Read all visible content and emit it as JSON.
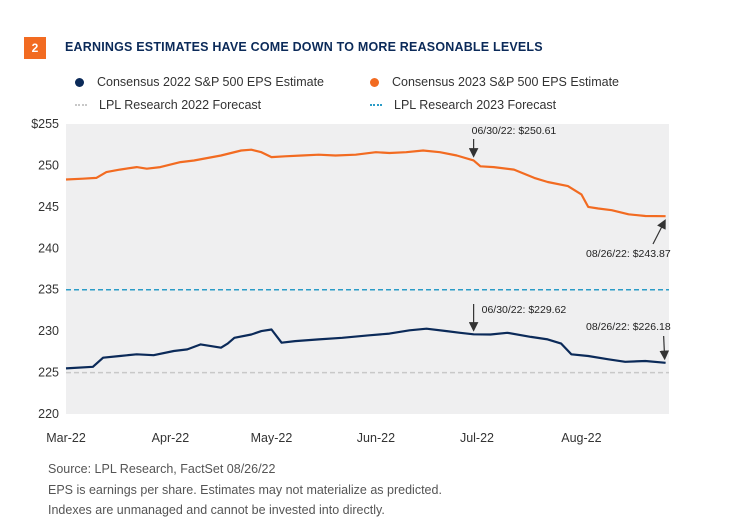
{
  "header": {
    "badge": "2",
    "title": "EARNINGS ESTIMATES HAVE COME DOWN TO MORE REASONABLE LEVELS"
  },
  "colors": {
    "navy": "#0b2a59",
    "orange": "#f26b21",
    "grey_dash": "#c8c8c8",
    "teal_dash": "#2b9cc7",
    "plot_bg": "#efeff0"
  },
  "chart_data": {
    "type": "line",
    "ylim": [
      220,
      255
    ],
    "y_ticks": [
      "$255",
      "250",
      "245",
      "240",
      "235",
      "230",
      "225",
      "220"
    ],
    "x_ticks": [
      "Mar-22",
      "Apr-22",
      "May-22",
      "Jun-22",
      "Jul-22",
      "Aug-22"
    ],
    "x_range": [
      "2022-03-01",
      "2022-08-27"
    ],
    "series": [
      {
        "name": "Consensus  2022 S&P 500 EPS Estimate",
        "style": "solid",
        "color": "#0b2a59",
        "x": [
          "2022-03-01",
          "2022-03-09",
          "2022-03-12",
          "2022-03-17",
          "2022-03-22",
          "2022-03-27",
          "2022-04-02",
          "2022-04-06",
          "2022-04-10",
          "2022-04-16",
          "2022-04-18",
          "2022-04-20",
          "2022-04-25",
          "2022-04-28",
          "2022-05-01",
          "2022-05-04",
          "2022-05-08",
          "2022-05-15",
          "2022-05-22",
          "2022-05-30",
          "2022-06-05",
          "2022-06-11",
          "2022-06-16",
          "2022-06-22",
          "2022-06-26",
          "2022-06-30",
          "2022-07-05",
          "2022-07-10",
          "2022-07-17",
          "2022-07-22",
          "2022-07-26",
          "2022-07-29",
          "2022-08-03",
          "2022-08-09",
          "2022-08-14",
          "2022-08-20",
          "2022-08-26"
        ],
        "values": [
          225.5,
          225.7,
          226.8,
          227.0,
          227.2,
          227.1,
          227.6,
          227.8,
          228.4,
          228.0,
          228.5,
          229.2,
          229.6,
          230.0,
          230.2,
          228.6,
          228.8,
          229.0,
          229.2,
          229.5,
          229.7,
          230.1,
          230.3,
          230.0,
          229.8,
          229.62,
          229.6,
          229.8,
          229.3,
          229.0,
          228.5,
          227.2,
          227.0,
          226.6,
          226.3,
          226.4,
          226.18
        ]
      },
      {
        "name": "Consensus  2023 S&P 500 EPS Estimate",
        "style": "solid",
        "color": "#f26b21",
        "x": [
          "2022-03-01",
          "2022-03-06",
          "2022-03-10",
          "2022-03-13",
          "2022-03-17",
          "2022-03-22",
          "2022-03-25",
          "2022-03-29",
          "2022-04-04",
          "2022-04-08",
          "2022-04-12",
          "2022-04-16",
          "2022-04-19",
          "2022-04-22",
          "2022-04-25",
          "2022-04-28",
          "2022-05-01",
          "2022-05-05",
          "2022-05-10",
          "2022-05-15",
          "2022-05-20",
          "2022-05-26",
          "2022-06-01",
          "2022-06-05",
          "2022-06-10",
          "2022-06-15",
          "2022-06-20",
          "2022-06-25",
          "2022-06-30",
          "2022-07-02",
          "2022-07-06",
          "2022-07-12",
          "2022-07-18",
          "2022-07-22",
          "2022-07-28",
          "2022-08-01",
          "2022-08-03",
          "2022-08-06",
          "2022-08-10",
          "2022-08-15",
          "2022-08-20",
          "2022-08-26"
        ],
        "values": [
          248.3,
          248.4,
          248.5,
          249.2,
          249.5,
          249.8,
          249.6,
          249.8,
          250.4,
          250.6,
          250.9,
          251.2,
          251.5,
          251.8,
          251.9,
          251.6,
          251.0,
          251.1,
          251.2,
          251.3,
          251.2,
          251.3,
          251.6,
          251.5,
          251.6,
          251.8,
          251.6,
          251.2,
          250.61,
          249.9,
          249.8,
          249.5,
          248.5,
          248.0,
          247.5,
          246.5,
          245.0,
          244.8,
          244.6,
          244.1,
          243.9,
          243.87
        ]
      },
      {
        "name": "LPL Research 2022 Forecast",
        "style": "dashed",
        "color": "#c8c8c8",
        "x": [
          "2022-03-01",
          "2022-08-27"
        ],
        "values": [
          225,
          225
        ]
      },
      {
        "name": "LPL Research 2023 Forecast",
        "style": "dashed",
        "color": "#2b9cc7",
        "x": [
          "2022-03-01",
          "2022-08-27"
        ],
        "values": [
          235,
          235
        ]
      }
    ],
    "annotations": [
      {
        "text": "06/30/22: $250.61",
        "x": "2022-06-30",
        "y": 250.61
      },
      {
        "text": "08/26/22: $243.87",
        "x": "2022-08-26",
        "y": 243.87
      },
      {
        "text": "06/30/22: $229.62",
        "x": "2022-06-30",
        "y": 229.62
      },
      {
        "text": "08/26/22: $226.18",
        "x": "2022-08-26",
        "y": 226.18
      }
    ]
  },
  "footnotes": [
    "Source: LPL Research, FactSet  08/26/22",
    "EPS is earnings per share. Estimates may not materialize as predicted.",
    "Indexes are unmanaged and cannot be invested into directly."
  ]
}
